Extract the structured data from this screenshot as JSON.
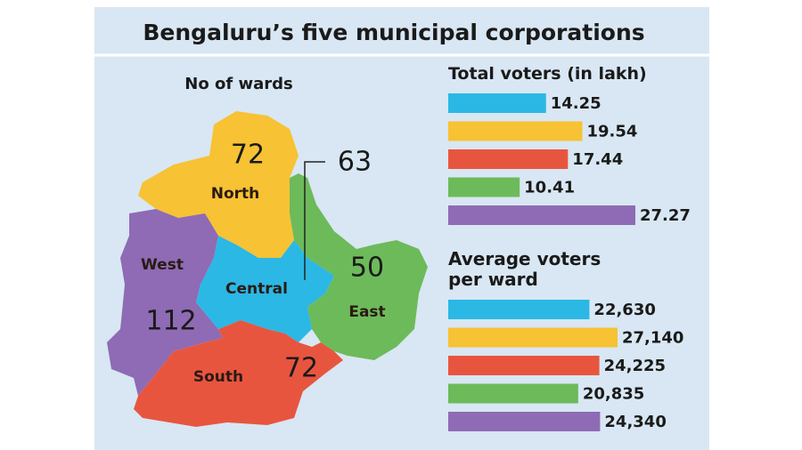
{
  "title": "Bengaluru’s five municipal corporations",
  "map": {
    "title": "No of wards",
    "regions": [
      {
        "name": "Central",
        "wards": 63,
        "color": "#2bb8e4"
      },
      {
        "name": "North",
        "wards": 72,
        "color": "#f7c233"
      },
      {
        "name": "South",
        "wards": 72,
        "color": "#e8553f"
      },
      {
        "name": "East",
        "wards": 50,
        "color": "#6dba5a"
      },
      {
        "name": "West",
        "wards": 112,
        "color": "#8e6bb4"
      }
    ]
  },
  "chart_data": [
    {
      "type": "bar",
      "title": "Total voters (in lakh)",
      "values": [
        14.25,
        19.54,
        17.44,
        10.41,
        27.27
      ]
    },
    {
      "type": "bar",
      "title": "Average voters per ward",
      "values": [
        22630,
        27140,
        24225,
        20835,
        24340
      ],
      "value_labels": [
        "22,630",
        "27,140",
        "24,225",
        "20,835",
        "24,340"
      ]
    }
  ]
}
